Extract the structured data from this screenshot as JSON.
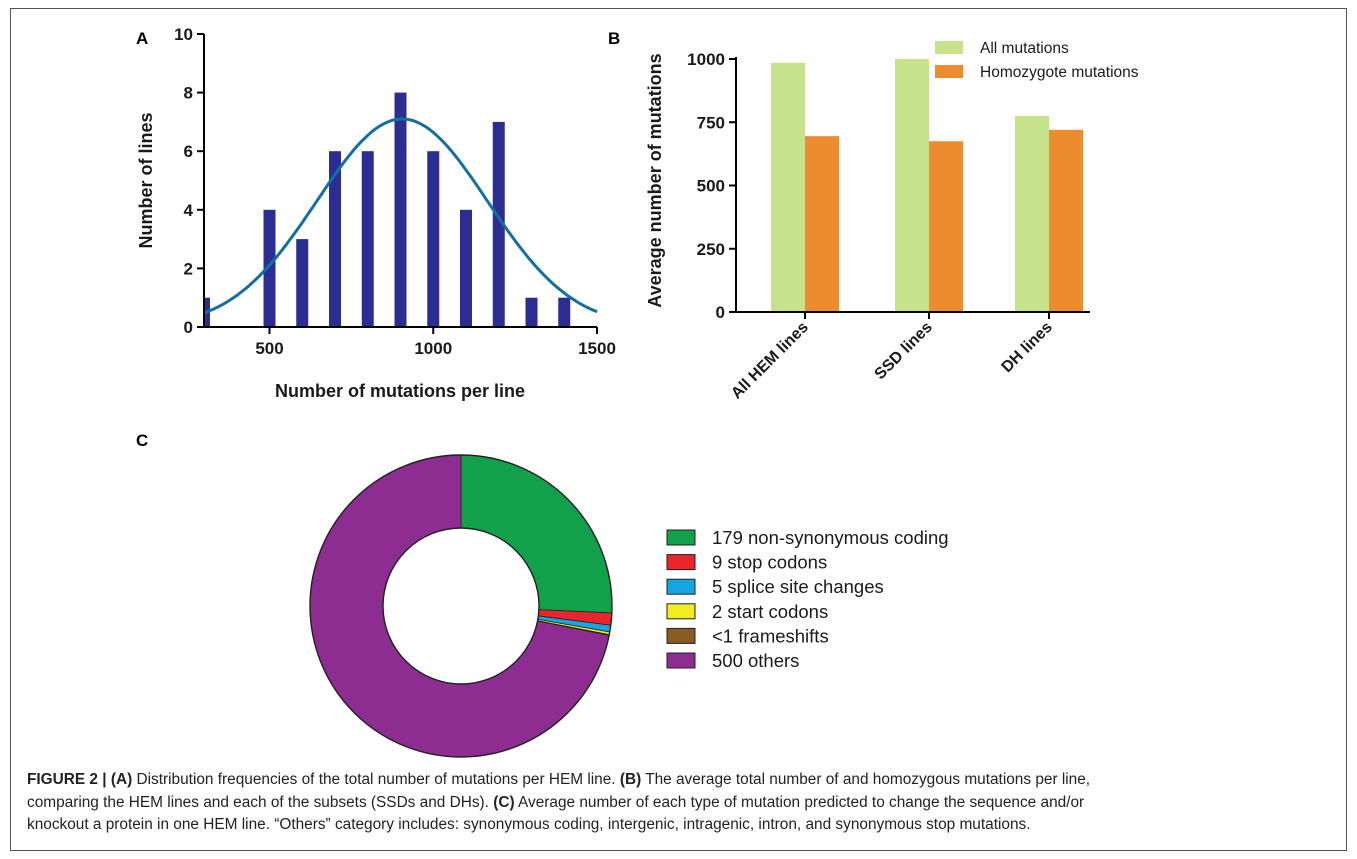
{
  "panel_labels": {
    "a": "A",
    "b": "B",
    "c": "C"
  },
  "chart_data": [
    {
      "id": "A",
      "type": "bar",
      "xlabel": "Number of mutations per line",
      "ylabel": "Number of lines",
      "xlim": [
        300,
        1500
      ],
      "ylim": [
        0,
        10
      ],
      "xticks": [
        500,
        1000,
        1500
      ],
      "yticks": [
        0,
        2,
        4,
        6,
        8,
        10
      ],
      "x": [
        300,
        500,
        600,
        700,
        800,
        900,
        1000,
        1100,
        1200,
        1300,
        1400
      ],
      "values": [
        1,
        4,
        3,
        6,
        6,
        8,
        6,
        4,
        7,
        1,
        1
      ],
      "bar_color": "#2b2d93",
      "fit": {
        "type": "gaussian",
        "mean": 905,
        "sd": 260,
        "peak": 7.1,
        "x_range": [
          300,
          1500
        ],
        "color": "#136fa0"
      }
    },
    {
      "id": "B",
      "type": "bar",
      "ylabel": "Average number of mutations",
      "categories": [
        "All HEM lines",
        "SSD lines",
        "DH lines"
      ],
      "ylim": [
        0,
        1000
      ],
      "yticks": [
        0,
        250,
        500,
        750,
        1000
      ],
      "series": [
        {
          "name": "All mutations",
          "values": [
            985,
            1000,
            775
          ],
          "color": "#c6e28b"
        },
        {
          "name": "Homozygote mutations",
          "values": [
            695,
            675,
            720
          ],
          "color": "#ec8c2f"
        }
      ],
      "legend": "top-right"
    },
    {
      "id": "C",
      "type": "pie",
      "donut": true,
      "slices": [
        {
          "label": "179 non-synonymous coding",
          "value": 179,
          "color": "#13a04b"
        },
        {
          "label": "9 stop codons",
          "value": 9,
          "color": "#e8262b"
        },
        {
          "label": "5 splice site changes",
          "value": 5,
          "color": "#14a6e0"
        },
        {
          "label": "2 start codons",
          "value": 2,
          "color": "#f4ec22"
        },
        {
          "label": "<1 frameshifts",
          "value": 0.5,
          "color": "#8a5a23"
        },
        {
          "label": "500 others",
          "value": 500,
          "color": "#8e2d91"
        }
      ],
      "legend": "right"
    }
  ],
  "caption": {
    "figure_label": "FIGURE 2 |",
    "a_label": "(A)",
    "a_text": " Distribution frequencies of the total number of mutations per HEM line. ",
    "b_label": "(B)",
    "b_text_1": " The average total number of and homozygous mutations per line,",
    "b_text_2": "comparing the HEM lines and each of the subsets (SSDs and DHs). ",
    "c_label": "(C)",
    "c_text_1": " Average number of each type of mutation predicted to change the sequence and/or",
    "c_text_2": "knockout a protein in one HEM line. “Others” category includes: synonymous coding, intergenic, intragenic, intron, and synonymous stop mutations."
  }
}
